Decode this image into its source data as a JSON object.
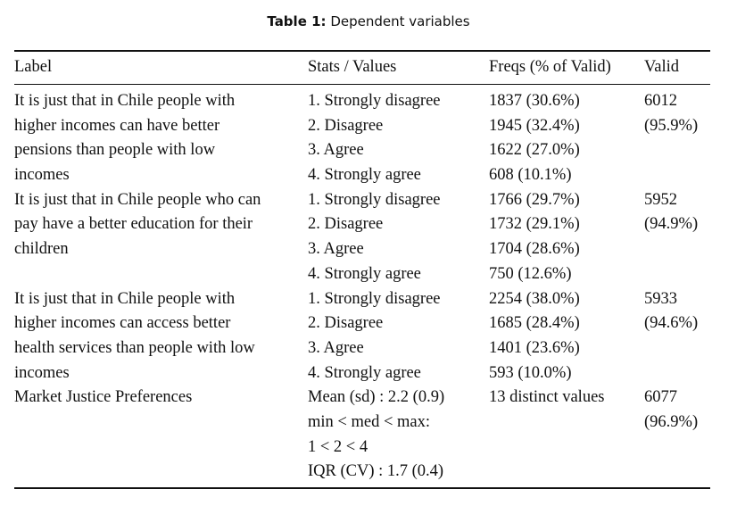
{
  "caption": {
    "label": "Table 1:",
    "text": "Dependent variables"
  },
  "headers": {
    "label": "Label",
    "stats": "Stats / Values",
    "freqs": "Freqs (% of Valid)",
    "valid": "Valid"
  },
  "rows": [
    {
      "label": [
        "It is just that in Chile people with",
        "higher incomes can have better",
        "pensions than people with low",
        "incomes"
      ],
      "stats": [
        "1. Strongly disagree",
        "2. Disagree",
        "3. Agree",
        "4. Strongly agree"
      ],
      "freqs": [
        "1837 (30.6%)",
        "1945 (32.4%)",
        "1622 (27.0%)",
        "608 (10.1%)"
      ],
      "valid": [
        "6012",
        "(95.9%)"
      ]
    },
    {
      "label": [
        "It is just that in Chile people who can",
        "pay have a better education for their",
        "children"
      ],
      "stats": [
        "1. Strongly disagree",
        "2. Disagree",
        "3. Agree",
        "4. Strongly agree"
      ],
      "freqs": [
        "1766 (29.7%)",
        "1732 (29.1%)",
        "1704 (28.6%)",
        "750 (12.6%)"
      ],
      "valid": [
        "5952",
        "(94.9%)"
      ]
    },
    {
      "label": [
        "It is just that in Chile people with",
        "higher incomes can access better",
        "health services than people with low",
        "incomes"
      ],
      "stats": [
        "1. Strongly disagree",
        "2. Disagree",
        "3. Agree",
        "4. Strongly agree"
      ],
      "freqs": [
        "2254 (38.0%)",
        "1685 (28.4%)",
        "1401 (23.6%)",
        "593 (10.0%)"
      ],
      "valid": [
        "5933",
        "(94.6%)"
      ]
    },
    {
      "label": [
        "Market Justice Preferences"
      ],
      "stats": [
        "Mean (sd) : 2.2 (0.9)",
        "min < med < max:",
        "1 < 2 < 4",
        "IQR (CV) : 1.7 (0.4)"
      ],
      "freqs": [
        "13 distinct values"
      ],
      "valid": [
        "6077",
        "(96.9%)"
      ]
    }
  ]
}
